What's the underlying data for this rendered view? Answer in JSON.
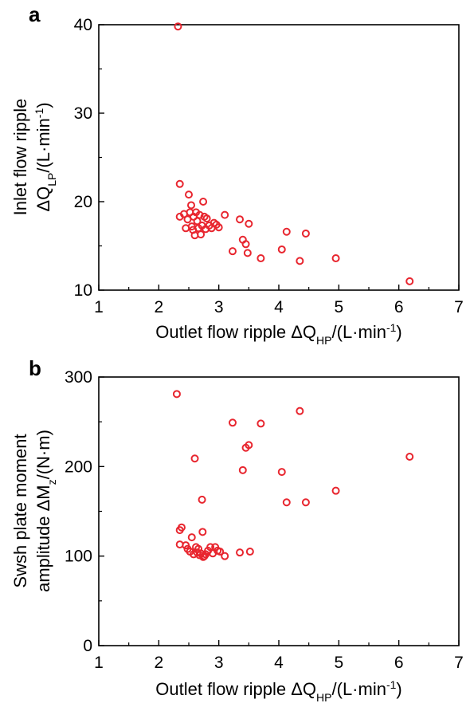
{
  "chart_data": [
    {
      "type": "scatter",
      "panel_label": "a",
      "title": "",
      "xlabel": {
        "main": "Outlet flow ripple ΔQ",
        "sub": "HP",
        "tail": "/(L·min",
        "sup": "-1",
        "close": ")"
      },
      "ylabel": {
        "line1": "Inlet flow ripple",
        "line2": {
          "main": "ΔQ",
          "sub": "LP",
          "tail": "/(L·min",
          "sup": "-1",
          "close": ")"
        }
      },
      "xlim": [
        1,
        7
      ],
      "ylim": [
        10,
        40
      ],
      "xticks": [
        "1",
        "2",
        "3",
        "4",
        "5",
        "6",
        "7"
      ],
      "yticks": [
        "10",
        "20",
        "30",
        "40"
      ],
      "grid": false,
      "marker_color": "#e8262f",
      "points": [
        [
          2.32,
          39.8
        ],
        [
          2.35,
          22.0
        ],
        [
          2.35,
          18.3
        ],
        [
          2.42,
          18.6
        ],
        [
          2.45,
          17.0
        ],
        [
          2.48,
          18.0
        ],
        [
          2.5,
          20.8
        ],
        [
          2.52,
          18.8
        ],
        [
          2.54,
          19.6
        ],
        [
          2.55,
          17.2
        ],
        [
          2.57,
          16.8
        ],
        [
          2.58,
          18.3
        ],
        [
          2.6,
          16.2
        ],
        [
          2.62,
          18.8
        ],
        [
          2.64,
          17.8
        ],
        [
          2.66,
          17.0
        ],
        [
          2.68,
          18.5
        ],
        [
          2.7,
          16.3
        ],
        [
          2.72,
          17.3
        ],
        [
          2.74,
          20.0
        ],
        [
          2.76,
          18.3
        ],
        [
          2.78,
          16.9
        ],
        [
          2.8,
          18.1
        ],
        [
          2.84,
          17.3
        ],
        [
          2.88,
          17.0
        ],
        [
          2.92,
          17.6
        ],
        [
          2.96,
          17.4
        ],
        [
          3.0,
          17.1
        ],
        [
          3.1,
          18.5
        ],
        [
          3.23,
          14.4
        ],
        [
          3.35,
          18.0
        ],
        [
          3.4,
          15.7
        ],
        [
          3.45,
          15.2
        ],
        [
          3.48,
          14.2
        ],
        [
          3.5,
          17.5
        ],
        [
          3.7,
          13.6
        ],
        [
          4.05,
          14.6
        ],
        [
          4.13,
          16.6
        ],
        [
          4.35,
          13.3
        ],
        [
          4.45,
          16.4
        ],
        [
          4.95,
          13.6
        ],
        [
          6.18,
          11.0
        ]
      ]
    },
    {
      "type": "scatter",
      "panel_label": "b",
      "title": "",
      "xlabel": {
        "main": "Outlet flow ripple ΔQ",
        "sub": "HP",
        "tail": "/(L·min",
        "sup": "-1",
        "close": ")"
      },
      "ylabel": {
        "line1": "Swsh plate moment",
        "line2": {
          "main": "amplitude ΔM",
          "sub": "z",
          "tail": "/(N·m)",
          "sup": "",
          "close": ""
        }
      },
      "xlim": [
        1,
        7
      ],
      "ylim": [
        0,
        300
      ],
      "xticks": [
        "1",
        "2",
        "3",
        "4",
        "5",
        "6",
        "7"
      ],
      "yticks": [
        "0",
        "100",
        "200",
        "300"
      ],
      "grid": false,
      "marker_color": "#e8262f",
      "points": [
        [
          2.3,
          281
        ],
        [
          2.35,
          129
        ],
        [
          2.38,
          132
        ],
        [
          2.35,
          113
        ],
        [
          2.45,
          112
        ],
        [
          2.48,
          108
        ],
        [
          2.52,
          105
        ],
        [
          2.55,
          121
        ],
        [
          2.58,
          102
        ],
        [
          2.6,
          209
        ],
        [
          2.62,
          110
        ],
        [
          2.64,
          104
        ],
        [
          2.66,
          108
        ],
        [
          2.68,
          101
        ],
        [
          2.7,
          103
        ],
        [
          2.72,
          163
        ],
        [
          2.73,
          127
        ],
        [
          2.74,
          99
        ],
        [
          2.76,
          100
        ],
        [
          2.78,
          102
        ],
        [
          2.82,
          106
        ],
        [
          2.86,
          110
        ],
        [
          2.9,
          103
        ],
        [
          2.94,
          110
        ],
        [
          2.98,
          106
        ],
        [
          3.02,
          105
        ],
        [
          3.1,
          100
        ],
        [
          3.23,
          249
        ],
        [
          3.35,
          104
        ],
        [
          3.4,
          196
        ],
        [
          3.45,
          221
        ],
        [
          3.5,
          224
        ],
        [
          3.52,
          105
        ],
        [
          3.7,
          248
        ],
        [
          4.05,
          194
        ],
        [
          4.13,
          160
        ],
        [
          4.35,
          262
        ],
        [
          4.45,
          160
        ],
        [
          4.95,
          173
        ],
        [
          6.18,
          211
        ]
      ]
    }
  ]
}
